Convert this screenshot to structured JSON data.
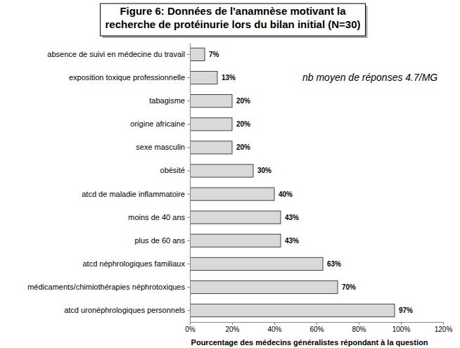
{
  "chart_data": {
    "type": "bar",
    "orientation": "horizontal",
    "title": "Figure 6: Données de l'anamnèse motivant la recherche de protéinurie lors du bilan initial (N=30)",
    "annotation": "nb moyen de réponses 4.7/MG",
    "x_label": "Pourcentage des médecins généralistes répondant à la question",
    "categories": [
      "absence de suivi en médecine du travail",
      "exposition toxique professionnelle",
      "tabagisme",
      "origine africaine",
      "sexe masculin",
      "obésité",
      "atcd de maladie inflammatoire",
      "moins de 40 ans",
      "plus de 60 ans",
      "atcd néphrologiques familiaux",
      "médicaments/chimiothérapies néphrotoxiques",
      "atcd uronéphrologiques personnels"
    ],
    "values": [
      7,
      13,
      20,
      20,
      20,
      30,
      40,
      43,
      43,
      63,
      70,
      97
    ],
    "value_labels": [
      "7%",
      "13%",
      "20%",
      "20%",
      "20%",
      "30%",
      "40%",
      "43%",
      "43%",
      "63%",
      "70%",
      "97%"
    ],
    "color": "#d9d9d9",
    "xlim": [
      0,
      120
    ],
    "xticks": [
      {
        "value": 0,
        "label": "0%"
      },
      {
        "value": 20,
        "label": "20%"
      },
      {
        "value": 40,
        "label": "40%"
      },
      {
        "value": 60,
        "label": "60%"
      },
      {
        "value": 80,
        "label": "80%"
      },
      {
        "value": 100,
        "label": "100%"
      },
      {
        "value": 120,
        "label": "120%"
      }
    ],
    "grid": false,
    "data_labels": true
  }
}
